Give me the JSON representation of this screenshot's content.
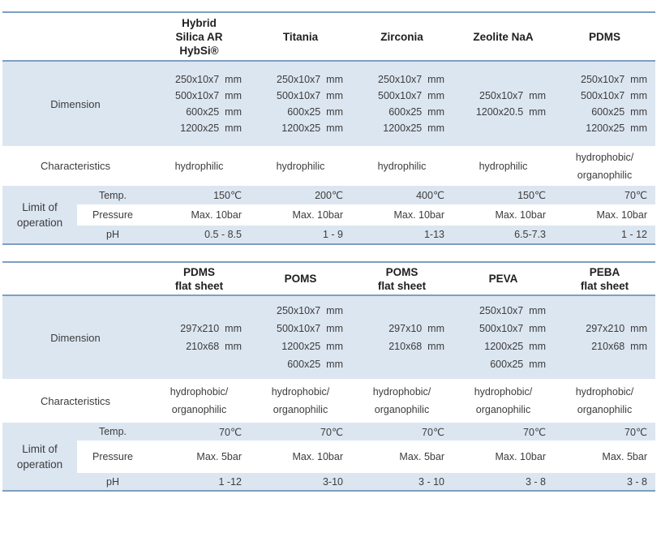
{
  "colors": {
    "row_highlight": "#dce6f1",
    "table_border": "#7e9fbf",
    "header_text": "#1f1f1f",
    "body_text": "#3c3c3c"
  },
  "labels": {
    "dimension": "Dimension",
    "characteristics": "Characteristics",
    "limit_line1": "Limit of",
    "limit_line2": "operation",
    "temp": "Temp.",
    "pressure": "Pressure",
    "ph": "pH"
  },
  "table1": {
    "headers": [
      {
        "lines": [
          "Hybrid",
          "Silica AR",
          "HybSi®"
        ]
      },
      {
        "lines": [
          "Titania"
        ]
      },
      {
        "lines": [
          "Zirconia"
        ]
      },
      {
        "lines": [
          "Zeolite NaA"
        ]
      },
      {
        "lines": [
          "PDMS"
        ]
      }
    ],
    "dimension": [
      {
        "lines": [
          "250x10x7  mm",
          "500x10x7  mm",
          "600x25  mm",
          "1200x25  mm"
        ]
      },
      {
        "lines": [
          "250x10x7  mm",
          "500x10x7  mm",
          "600x25  mm",
          "1200x25  mm"
        ]
      },
      {
        "lines": [
          "250x10x7  mm",
          "500x10x7  mm",
          "600x25  mm",
          "1200x25  mm"
        ]
      },
      {
        "lines": [
          "",
          "250x10x7  mm",
          "1200x20.5  mm",
          ""
        ]
      },
      {
        "lines": [
          "250x10x7  mm",
          "500x10x7  mm",
          "600x25  mm",
          "1200x25  mm"
        ]
      }
    ],
    "characteristics": [
      {
        "lines": [
          "hydrophilic"
        ]
      },
      {
        "lines": [
          "hydrophilic"
        ]
      },
      {
        "lines": [
          "hydrophilic"
        ]
      },
      {
        "lines": [
          "hydrophilic"
        ]
      },
      {
        "lines": [
          "hydrophobic/",
          "organophilic"
        ]
      }
    ],
    "temp": [
      "150℃",
      "200℃",
      "400℃",
      "150℃",
      "70℃"
    ],
    "pressure": [
      "Max. 10bar",
      "Max. 10bar",
      "Max. 10bar",
      "Max. 10bar",
      "Max. 10bar"
    ],
    "ph": [
      "0.5 - 8.5",
      "1 - 9",
      "1-13",
      "6.5-7.3",
      "1 - 12"
    ]
  },
  "table2": {
    "headers": [
      {
        "lines": [
          "PDMS",
          "flat sheet"
        ]
      },
      {
        "lines": [
          "POMS"
        ]
      },
      {
        "lines": [
          "POMS",
          "flat sheet"
        ]
      },
      {
        "lines": [
          "PEVA"
        ]
      },
      {
        "lines": [
          "PEBA",
          "flat sheet"
        ]
      }
    ],
    "dimension": [
      {
        "lines": [
          "",
          "297x210  mm",
          "210x68  mm",
          ""
        ]
      },
      {
        "lines": [
          "250x10x7  mm",
          "500x10x7  mm",
          "1200x25  mm",
          "600x25  mm"
        ]
      },
      {
        "lines": [
          "",
          "297x10  mm",
          "210x68  mm",
          ""
        ]
      },
      {
        "lines": [
          "250x10x7  mm",
          "500x10x7  mm",
          "1200x25  mm",
          "600x25  mm"
        ]
      },
      {
        "lines": [
          "",
          "297x210  mm",
          "210x68  mm",
          ""
        ]
      }
    ],
    "characteristics": [
      {
        "lines": [
          "hydrophobic/",
          "organophilic"
        ]
      },
      {
        "lines": [
          "hydrophobic/",
          "organophilic"
        ]
      },
      {
        "lines": [
          "hydrophobic/",
          "organophilic"
        ]
      },
      {
        "lines": [
          "hydrophobic/",
          "organophilic"
        ]
      },
      {
        "lines": [
          "hydrophobic/",
          "organophilic"
        ]
      }
    ],
    "temp": [
      "70℃",
      "70℃",
      "70℃",
      "70℃",
      "70℃"
    ],
    "pressure": [
      "Max. 5bar",
      "Max. 10bar",
      "Max. 5bar",
      "Max. 10bar",
      "Max. 5bar"
    ],
    "ph": [
      "1 -12",
      "3-10",
      "3 - 10",
      "3 - 8",
      "3 - 8"
    ]
  }
}
